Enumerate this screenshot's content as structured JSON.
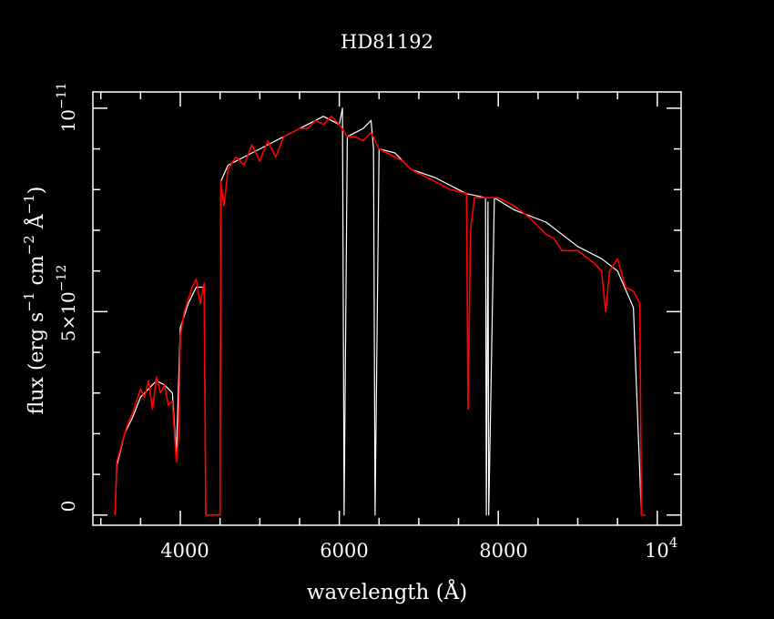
{
  "chart_data": {
    "type": "line",
    "title": "HD81192",
    "xlabel": "wavelength (Å)",
    "ylabel_parts": {
      "a": "flux (erg s",
      "b": "−1",
      "c": " cm",
      "d": "−2",
      "e": " Å",
      "f": "−1",
      "g": ")"
    },
    "x_ticks": [
      {
        "value": 4000,
        "label": "4000"
      },
      {
        "value": 6000,
        "label": "6000"
      },
      {
        "value": 8000,
        "label": "8000"
      }
    ],
    "x_end_label": {
      "base": "10",
      "exp": "4"
    },
    "y_ticks": [
      {
        "value": 0,
        "label": "0"
      },
      {
        "value": 5e-12,
        "label": "5×10",
        "exp": "−12"
      },
      {
        "value": 1e-11,
        "label": "10",
        "exp": "−11"
      }
    ],
    "xlim": [
      2900,
      10300
    ],
    "ylim": [
      -2.5e-13,
      1.04e-11
    ],
    "background": "#000000",
    "colors": {
      "axes": "#ffffff",
      "series_white": "#ffffff",
      "series_red": "#ff0000"
    },
    "series": [
      {
        "color": "#ffffff",
        "x": [
          3180,
          3200,
          3300,
          3400,
          3500,
          3600,
          3700,
          3800,
          3900,
          3950,
          4000,
          4100,
          4200,
          4300,
          4320,
          4500,
          4510,
          4600,
          4800,
          5000,
          5200,
          5400,
          5600,
          5800,
          6000,
          6040,
          6060,
          6100,
          6200,
          6300,
          6400,
          6430,
          6450,
          6500,
          6700,
          6900,
          7200,
          7500,
          7600,
          7840,
          7850,
          7870,
          7880,
          7950,
          8200,
          8600,
          9000,
          9300,
          9500,
          9700,
          9800,
          9850
        ],
        "y": [
          0,
          1.2e-12,
          2e-12,
          2.4e-12,
          2.9e-12,
          3.1e-12,
          3.3e-12,
          3.2e-12,
          3e-12,
          1.5e-12,
          4.6e-12,
          5.2e-12,
          5.6e-12,
          5.6e-12,
          0,
          0,
          8.2e-12,
          8.6e-12,
          8.8e-12,
          9e-12,
          9.2e-12,
          9.4e-12,
          9.6e-12,
          9.8e-12,
          9.6e-12,
          1e-11,
          0,
          9.3e-12,
          9.4e-12,
          9.5e-12,
          9.7e-12,
          9e-12,
          0,
          9e-12,
          8.9e-12,
          8.5e-12,
          8.3e-12,
          8e-12,
          7.9e-12,
          7.8e-12,
          0,
          7.7e-12,
          0,
          7.8e-12,
          7.5e-12,
          7.2e-12,
          6.6e-12,
          6.3e-12,
          6e-12,
          5.1e-12,
          0,
          0
        ]
      },
      {
        "color": "#ff0000",
        "x": [
          3180,
          3200,
          3300,
          3350,
          3400,
          3450,
          3500,
          3550,
          3600,
          3650,
          3700,
          3750,
          3800,
          3850,
          3900,
          3950,
          3980,
          4000,
          4050,
          4100,
          4150,
          4200,
          4250,
          4300,
          4320,
          4340,
          4500,
          4510,
          4550,
          4600,
          4700,
          4800,
          4900,
          5000,
          5100,
          5200,
          5300,
          5400,
          5500,
          5600,
          5700,
          5800,
          5900,
          6000,
          6100,
          6200,
          6300,
          6400,
          6500,
          6600,
          6800,
          6900,
          7000,
          7200,
          7400,
          7600,
          7620,
          7650,
          7700,
          7900,
          8000,
          8200,
          8400,
          8550,
          8600,
          8700,
          8800,
          9000,
          9200,
          9300,
          9350,
          9400,
          9500,
          9600,
          9700,
          9780,
          9800,
          9850
        ],
        "y": [
          0,
          1.3e-12,
          2e-12,
          2.3e-12,
          2.5e-12,
          2.8e-12,
          3.1e-12,
          2.9e-12,
          3.3e-12,
          2.6e-12,
          3.4e-12,
          3e-12,
          3.2e-12,
          2.7e-12,
          2.8e-12,
          1.3e-12,
          2e-12,
          4.4e-12,
          5e-12,
          5.3e-12,
          5.6e-12,
          5.8e-12,
          5.2e-12,
          5.7e-12,
          0,
          0,
          0,
          8.2e-12,
          7.6e-12,
          8.5e-12,
          8.8e-12,
          8.6e-12,
          9.1e-12,
          8.7e-12,
          9.2e-12,
          8.8e-12,
          9.3e-12,
          9.4e-12,
          9.5e-12,
          9.5e-12,
          9.7e-12,
          9.6e-12,
          9.8e-12,
          9.6e-12,
          9.3e-12,
          9.3e-12,
          9.2e-12,
          9.4e-12,
          9e-12,
          8.9e-12,
          8.7e-12,
          8.5e-12,
          8.4e-12,
          8.2e-12,
          8e-12,
          7.9e-12,
          2.6e-12,
          7e-12,
          7.8e-12,
          7.8e-12,
          7.8e-12,
          7.6e-12,
          7.3e-12,
          7e-12,
          6.9e-12,
          6.8e-12,
          6.5e-12,
          6.5e-12,
          6.2e-12,
          6e-12,
          5e-12,
          6e-12,
          6.3e-12,
          5.6e-12,
          5.5e-12,
          5.2e-12,
          0,
          0
        ]
      }
    ]
  }
}
